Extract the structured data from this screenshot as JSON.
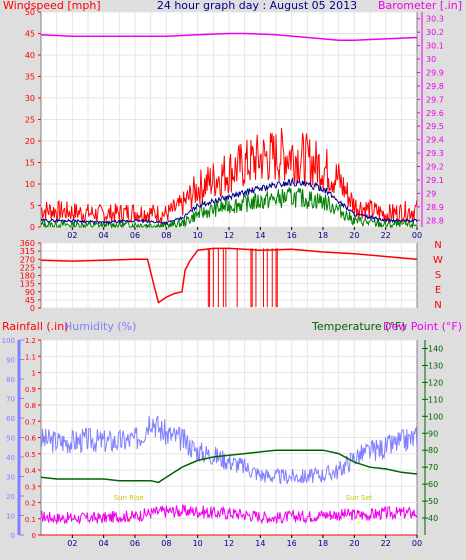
{
  "title": "24 hour graph day : August 05 2013",
  "colors": {
    "background": "#dedede",
    "plot_bg": "#ffffff",
    "grid": "#e6e6e6",
    "wind_speed": "#ff0000",
    "wind_avg": "#00008b",
    "wind_low": "#008000",
    "barometer": "#ee00ee",
    "direction": "#ff0000",
    "rainfall": "#ff0000",
    "humidity": "#8080ff",
    "temperature": "#006400",
    "dewpoint": "#ee00ee",
    "sun": "#ffff00"
  },
  "chart_data": [
    {
      "type": "line",
      "labels": {
        "left": "Windspeed [mph]",
        "right": "Barometer [.in]"
      },
      "x_ticks": [
        "02",
        "04",
        "06",
        "08",
        "10",
        "12",
        "14",
        "16",
        "18",
        "20",
        "22",
        "00"
      ],
      "ylim_left": [
        0,
        50
      ],
      "y_ticks_left": [
        "0",
        "5",
        "10",
        "15",
        "20",
        "25",
        "30",
        "35",
        "40",
        "45",
        "50"
      ],
      "ylim_right": [
        28.75,
        30.35
      ],
      "y_ticks_right": [
        "28.8",
        "28.9",
        "29",
        "29.1",
        "29.2",
        "29.3",
        "29.4",
        "29.5",
        "29.6",
        "29.7",
        "29.8",
        "29.9",
        "30",
        "30.1",
        "30.2",
        "30.3"
      ],
      "series": [
        {
          "axis": "right",
          "points": [
            [
              0,
              30.18
            ],
            [
              2,
              30.17
            ],
            [
              4,
              30.17
            ],
            [
              6,
              30.17
            ],
            [
              8,
              30.17
            ],
            [
              10,
              30.18
            ],
            [
              12,
              30.19
            ],
            [
              13,
              30.19
            ],
            [
              15,
              30.18
            ],
            [
              17,
              30.16
            ],
            [
              19,
              30.14
            ],
            [
              20,
              30.14
            ],
            [
              22,
              30.15
            ],
            [
              24,
              30.16
            ]
          ]
        },
        {
          "axis": "left",
          "points": [
            [
              0,
              4
            ],
            [
              2,
              3.5
            ],
            [
              4,
              3
            ],
            [
              6,
              3.5
            ],
            [
              8,
              3
            ],
            [
              9,
              5
            ],
            [
              10,
              9
            ],
            [
              12,
              13
            ],
            [
              14,
              16
            ],
            [
              16,
              17
            ],
            [
              18,
              14
            ],
            [
              19,
              11
            ],
            [
              20,
              5
            ],
            [
              22,
              3
            ],
            [
              24,
              4
            ]
          ]
        },
        {
          "axis": "left",
          "points": [
            [
              0,
              1.5
            ],
            [
              2,
              1.5
            ],
            [
              4,
              1
            ],
            [
              6,
              1.5
            ],
            [
              8,
              1
            ],
            [
              9,
              2
            ],
            [
              10,
              5
            ],
            [
              12,
              7
            ],
            [
              14,
              9
            ],
            [
              16,
              10.5
            ],
            [
              18,
              9
            ],
            [
              19,
              6
            ],
            [
              20,
              3
            ],
            [
              22,
              1.5
            ],
            [
              24,
              1.5
            ]
          ]
        },
        {
          "axis": "left",
          "points": [
            [
              0,
              0.5
            ],
            [
              2,
              0.5
            ],
            [
              4,
              0.3
            ],
            [
              6,
              0.5
            ],
            [
              8,
              0.3
            ],
            [
              9,
              0.8
            ],
            [
              10,
              3
            ],
            [
              12,
              5
            ],
            [
              14,
              6
            ],
            [
              16,
              7
            ],
            [
              18,
              6
            ],
            [
              19,
              4
            ],
            [
              20,
              1.5
            ],
            [
              22,
              0.5
            ],
            [
              24,
              0.5
            ]
          ]
        }
      ]
    },
    {
      "type": "line",
      "labels": {
        "right_letters": [
          "N",
          "W",
          "S",
          "E",
          "N"
        ]
      },
      "ylim": [
        0,
        360
      ],
      "y_ticks": [
        "0",
        "45",
        "90",
        "135",
        "180",
        "225",
        "270",
        "315",
        "360"
      ],
      "series": [
        {
          "points": [
            [
              0,
              265
            ],
            [
              2,
              260
            ],
            [
              4,
              265
            ],
            [
              6,
              270
            ],
            [
              6.8,
              270
            ],
            [
              7.2,
              130
            ],
            [
              7.5,
              30
            ],
            [
              8,
              60
            ],
            [
              8.5,
              80
            ],
            [
              9,
              90
            ],
            [
              9.2,
              210
            ],
            [
              9.5,
              260
            ],
            [
              10,
              320
            ],
            [
              11,
              330
            ],
            [
              12,
              330
            ],
            [
              14,
              320
            ],
            [
              16,
              325
            ],
            [
              18,
              310
            ],
            [
              20,
              300
            ],
            [
              22,
              285
            ],
            [
              24,
              270
            ]
          ]
        }
      ]
    },
    {
      "type": "line",
      "labels": {
        "rainfall": "Rainfall (.in)",
        "humidity": "Humidity (%)",
        "temperature": "Temperature (°F)",
        "dewpoint": "Dew Point (°F)",
        "sunrise": "Sun Rise",
        "sunset": "Sun Set"
      },
      "ylim_rain": [
        0,
        1.2
      ],
      "y_ticks_rain": [
        "0",
        "0.1",
        "0.2",
        "0.3",
        "0.4",
        "0.5",
        "0.6",
        "0.7",
        "0.8",
        "0.9",
        "1",
        "1.1",
        "1.2"
      ],
      "ylim_humidity": [
        0,
        100
      ],
      "y_ticks_humidity": [
        "0",
        "10",
        "20",
        "30",
        "40",
        "50",
        "60",
        "70",
        "80",
        "90",
        "100"
      ],
      "ylim_temp": [
        30,
        145
      ],
      "y_ticks_temp": [
        "40",
        "50",
        "60",
        "70",
        "80",
        "90",
        "100",
        "110",
        "120",
        "130",
        "140"
      ],
      "sun_events": {
        "sunrise_hour": 5.6,
        "sunset_hour": 20.3
      },
      "series": [
        {
          "axis": "humidity",
          "points": [
            [
              0,
              49
            ],
            [
              1,
              48
            ],
            [
              2,
              48
            ],
            [
              3,
              49
            ],
            [
              4,
              48
            ],
            [
              5,
              48
            ],
            [
              6,
              49
            ],
            [
              6.5,
              52
            ],
            [
              7,
              61
            ],
            [
              7.5,
              55
            ],
            [
              8,
              52
            ],
            [
              9,
              49
            ],
            [
              10,
              43
            ],
            [
              11,
              41
            ],
            [
              12,
              38
            ],
            [
              13,
              35
            ],
            [
              14,
              31
            ],
            [
              15,
              30
            ],
            [
              16,
              30
            ],
            [
              17,
              30
            ],
            [
              18,
              31
            ],
            [
              19,
              33
            ],
            [
              20,
              40
            ],
            [
              21,
              43
            ],
            [
              22,
              45
            ],
            [
              23,
              48
            ],
            [
              24,
              50
            ]
          ]
        },
        {
          "axis": "temp",
          "points": [
            [
              0,
              64
            ],
            [
              1,
              63
            ],
            [
              2,
              63
            ],
            [
              3,
              63
            ],
            [
              4,
              63
            ],
            [
              5,
              62
            ],
            [
              6,
              62
            ],
            [
              7,
              62
            ],
            [
              7.5,
              61
            ],
            [
              8,
              64
            ],
            [
              9,
              70
            ],
            [
              10,
              74
            ],
            [
              11,
              76
            ],
            [
              12,
              77
            ],
            [
              13,
              78
            ],
            [
              14,
              79
            ],
            [
              15,
              80
            ],
            [
              16,
              80
            ],
            [
              17,
              80
            ],
            [
              18,
              80
            ],
            [
              19,
              78
            ],
            [
              20,
              73
            ],
            [
              21,
              70
            ],
            [
              22,
              69
            ],
            [
              23,
              67
            ],
            [
              24,
              66
            ]
          ]
        },
        {
          "axis": "temp",
          "points": [
            [
              0,
              41
            ],
            [
              1,
              40
            ],
            [
              2,
              40
            ],
            [
              3,
              40
            ],
            [
              4,
              40
            ],
            [
              5,
              41
            ],
            [
              6,
              41
            ],
            [
              7,
              43
            ],
            [
              8,
              44
            ],
            [
              9,
              44
            ],
            [
              10,
              44
            ],
            [
              11,
              43
            ],
            [
              12,
              43
            ],
            [
              13,
              42
            ],
            [
              14,
              41
            ],
            [
              15,
              40
            ],
            [
              16,
              41
            ],
            [
              17,
              41
            ],
            [
              18,
              42
            ],
            [
              19,
              42
            ],
            [
              20,
              42
            ],
            [
              21,
              42
            ],
            [
              22,
              43
            ],
            [
              23,
              43
            ],
            [
              24,
              43
            ]
          ]
        },
        {
          "axis": "rain",
          "points": [
            [
              0,
              0
            ],
            [
              24,
              0
            ]
          ]
        }
      ]
    }
  ]
}
